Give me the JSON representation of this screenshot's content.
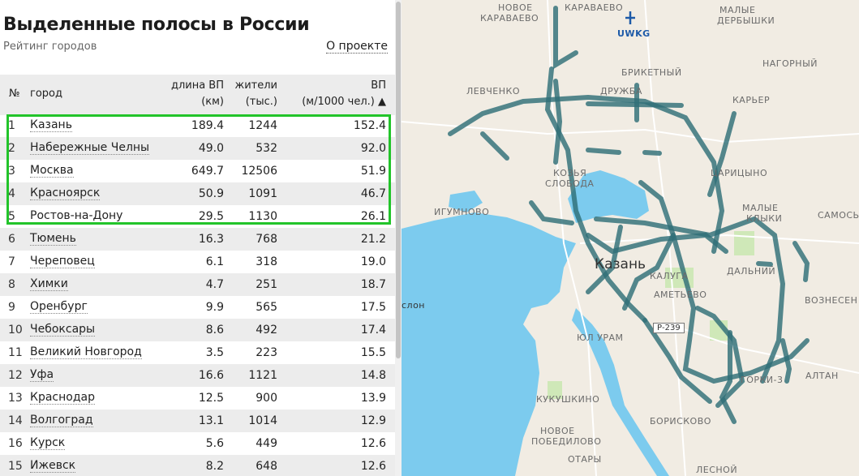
{
  "header": {
    "title": "Выделенные полосы в России",
    "subtitle": "Рейтинг городов",
    "about_link": "О проекте"
  },
  "table": {
    "headers": {
      "num": "№",
      "city": "город",
      "length_line1": "длина ВП",
      "length_line2": "(км)",
      "pop_line1": "жители",
      "pop_line2": "(тыс.)",
      "val_line1": "ВП",
      "val_line2": "(м/1000 чел.) ▲"
    },
    "rows": [
      {
        "num": "1",
        "city": "Казань",
        "length": "189.4",
        "population": "1244",
        "value": "152.4"
      },
      {
        "num": "2",
        "city": "Набережные Челны",
        "length": "49.0",
        "population": "532",
        "value": "92.0"
      },
      {
        "num": "3",
        "city": "Москва",
        "length": "649.7",
        "population": "12506",
        "value": "51.9"
      },
      {
        "num": "4",
        "city": "Красноярск",
        "length": "50.9",
        "population": "1091",
        "value": "46.7"
      },
      {
        "num": "5",
        "city": "Ростов-на-Дону",
        "length": "29.5",
        "population": "1130",
        "value": "26.1"
      },
      {
        "num": "6",
        "city": "Тюмень",
        "length": "16.3",
        "population": "768",
        "value": "21.2"
      },
      {
        "num": "7",
        "city": "Череповец",
        "length": "6.1",
        "population": "318",
        "value": "19.0"
      },
      {
        "num": "8",
        "city": "Химки",
        "length": "4.7",
        "population": "251",
        "value": "18.7"
      },
      {
        "num": "9",
        "city": "Оренбург",
        "length": "9.9",
        "population": "565",
        "value": "17.5"
      },
      {
        "num": "10",
        "city": "Чебоксары",
        "length": "8.6",
        "population": "492",
        "value": "17.4"
      },
      {
        "num": "11",
        "city": "Великий Новгород",
        "length": "3.5",
        "population": "223",
        "value": "15.5"
      },
      {
        "num": "12",
        "city": "Уфа",
        "length": "16.6",
        "population": "1121",
        "value": "14.8"
      },
      {
        "num": "13",
        "city": "Краснодар",
        "length": "12.5",
        "population": "900",
        "value": "13.9"
      },
      {
        "num": "14",
        "city": "Волгоград",
        "length": "13.1",
        "population": "1014",
        "value": "12.9"
      },
      {
        "num": "16",
        "city": "Курск",
        "length": "5.6",
        "population": "449",
        "value": "12.6"
      },
      {
        "num": "15",
        "city": "Ижевск",
        "length": "8.2",
        "population": "648",
        "value": "12.6"
      }
    ]
  },
  "map": {
    "city_label": "Казань",
    "road_shield": "Р-239",
    "labels": {
      "novoe_karaevo": "НОВОЕ",
      "karavaevo_left": "КАРАВАЕВО",
      "karavaevo_top": "КАРАВАЕВО",
      "uwkg": "UWKG",
      "malye_derbyshki_1": "МАЛЫЕ",
      "malye_derbyshki_2": "ДЕРБЫШКИ",
      "nagorny": "НАГОРНЫЙ",
      "briketny": "БРИКЕТНЫЙ",
      "levchenko": "ЛЕВЧЕНКО",
      "druzhba": "ДРУЖБА",
      "karer": "КАРЬЕР",
      "kozya_1": "КОЗЬЯ",
      "kozya_2": "СЛОБОДА",
      "tsaritsyno": "ЦАРИЦЫНО",
      "igumnovo": "ИГУМНОВО",
      "malye_kliki_1": "МАЛЫЕ",
      "malye_kliki_2": "КЛЫКИ",
      "samosyrovo": "САМОСЬ",
      "kaluga": "КАЛУГА",
      "dalny": "ДАЛЬНИЙ",
      "ametyevo": "АМЕТЬЕВО",
      "voznesenskoe": "ВОЗНЕСЕН",
      "slon": "слон",
      "yul_uram": "ЮЛ УРАМ",
      "gorki": "ГОРКИ-3",
      "altan": "АЛТАН",
      "kukushkino": "КУКУШКИНО",
      "boriskovo": "БОРИСКОВО",
      "novoe_pobedilovo_1": "НОВОЕ",
      "novoe_pobedilovo_2": "ПОБЕДИЛОВО",
      "otary": "ОТАРЫ",
      "lesnoy": "ЛЕСНОЙ"
    }
  },
  "colors": {
    "highlight_border": "#22c42a",
    "lane_line": "#2f6f78",
    "water": "#7ccbee",
    "land": "#f1ece3",
    "park": "#cfe8b8"
  }
}
